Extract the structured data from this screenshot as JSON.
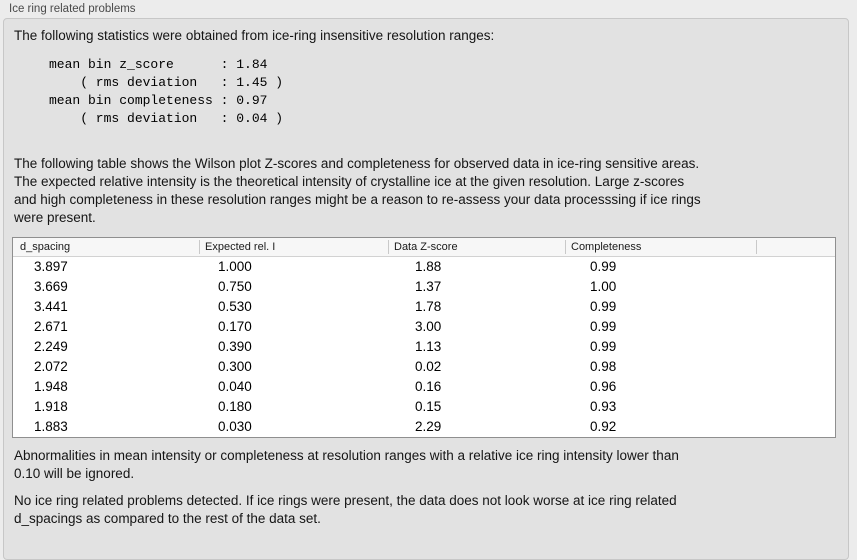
{
  "panel": {
    "title": "Ice ring related problems",
    "intro": "The following statistics were obtained from ice-ring insensitive resolution ranges:",
    "stats_block": "mean bin z_score      : 1.84\n    ( rms deviation   : 1.45 )\nmean bin completeness : 0.97\n    ( rms deviation   : 0.04 )",
    "stats": {
      "mean_bin_z_score": "1.84",
      "z_score_rms_deviation": "1.45",
      "mean_bin_completeness": "0.97",
      "completeness_rms_deviation": "0.04"
    },
    "table_description": "The following table shows the Wilson plot Z-scores and completeness for observed data in ice-ring sensitive areas.\nThe expected relative intensity is the theoretical intensity of crystalline ice at the given resolution. Large z-scores\nand high completeness in these resolution ranges might be a reason to re-assess your data processsing if ice rings\nwere present.",
    "ignore_note": "Abnormalities in mean intensity or completeness at resolution ranges with a relative ice ring intensity lower than\n0.10 will be ignored.",
    "conclusion": "No ice ring related problems detected. If ice rings were present, the data does not look worse at ice ring related\nd_spacings as compared to the rest of the data set."
  },
  "table": {
    "columns": [
      "d_spacing",
      "Expected rel. I",
      "Data Z-score",
      "Completeness"
    ],
    "rows": [
      [
        "3.897",
        "1.000",
        "1.88",
        "0.99"
      ],
      [
        "3.669",
        "0.750",
        "1.37",
        "1.00"
      ],
      [
        "3.441",
        "0.530",
        "1.78",
        "0.99"
      ],
      [
        "2.671",
        "0.170",
        "3.00",
        "0.99"
      ],
      [
        "2.249",
        "0.390",
        "1.13",
        "0.99"
      ],
      [
        "2.072",
        "0.300",
        "0.02",
        "0.98"
      ],
      [
        "1.948",
        "0.040",
        "0.16",
        "0.96"
      ],
      [
        "1.918",
        "0.180",
        "0.15",
        "0.93"
      ],
      [
        "1.883",
        "0.030",
        "2.29",
        "0.92"
      ]
    ]
  },
  "colors": {
    "window_bg": "#ececec",
    "panel_bg": "#e2e2e2",
    "panel_border": "#c7c7c7",
    "table_bg": "#ffffff",
    "table_border": "#8f8f8f",
    "table_header_bg": "#f7f7f7",
    "text": "#1a1a1a"
  }
}
